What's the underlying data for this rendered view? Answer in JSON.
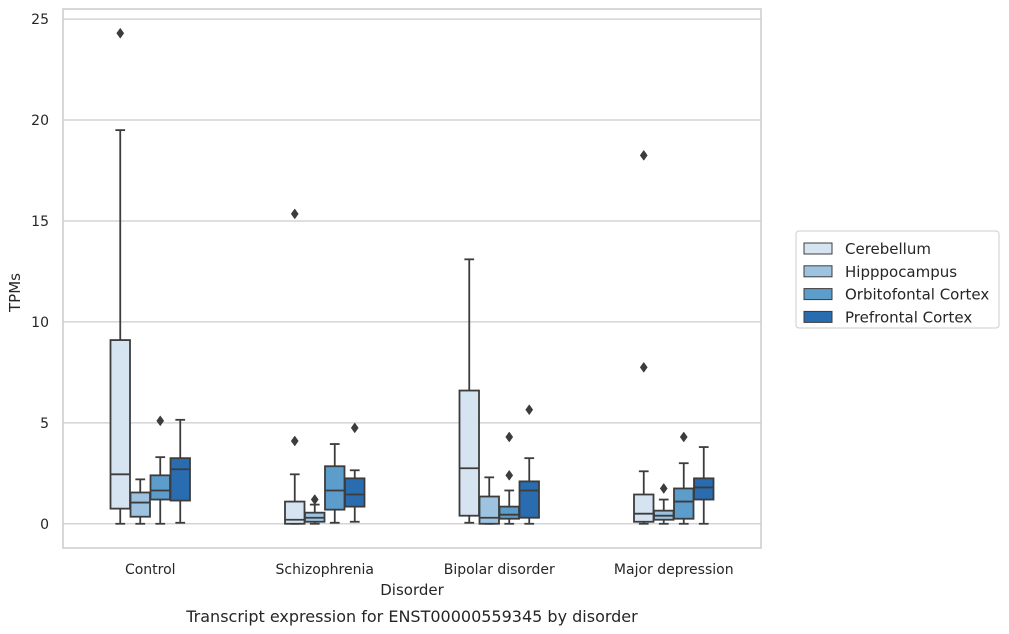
{
  "chart_data": {
    "type": "boxplot",
    "caption": "Transcript expression for ENST00000559345 by disorder",
    "xlabel": "Disorder",
    "ylabel": "TPMs",
    "ylim": [
      -1.2,
      25.5
    ],
    "yticks": [
      0,
      5,
      10,
      15,
      20,
      25
    ],
    "grid": true,
    "legend_position": "right",
    "categories": [
      "Control",
      "Schizophrenia",
      "Bipolar disorder",
      "Major depression"
    ],
    "series": [
      {
        "name": "Cerebellum",
        "color": "#d6e4f2",
        "boxes": [
          {
            "whislo": 0.0,
            "q1": 0.75,
            "med": 2.45,
            "q3": 9.1,
            "whishi": 19.5,
            "fliers": [
              24.3
            ]
          },
          {
            "whislo": 0.0,
            "q1": 0.0,
            "med": 0.2,
            "q3": 1.1,
            "whishi": 2.45,
            "fliers": [
              4.1,
              15.35
            ]
          },
          {
            "whislo": 0.05,
            "q1": 0.4,
            "med": 2.75,
            "q3": 6.6,
            "whishi": 13.1,
            "fliers": []
          },
          {
            "whislo": 0.0,
            "q1": 0.1,
            "med": 0.5,
            "q3": 1.45,
            "whishi": 2.6,
            "fliers": [
              7.75,
              18.25
            ]
          }
        ]
      },
      {
        "name": "Hipppocampus",
        "color": "#9dc3e0",
        "boxes": [
          {
            "whislo": 0.0,
            "q1": 0.35,
            "med": 1.05,
            "q3": 1.55,
            "whishi": 2.2,
            "fliers": []
          },
          {
            "whislo": 0.0,
            "q1": 0.1,
            "med": 0.3,
            "q3": 0.55,
            "whishi": 0.95,
            "fliers": [
              1.2
            ]
          },
          {
            "whislo": 0.0,
            "q1": 0.0,
            "med": 0.3,
            "q3": 1.35,
            "whishi": 2.3,
            "fliers": []
          },
          {
            "whislo": 0.0,
            "q1": 0.2,
            "med": 0.4,
            "q3": 0.65,
            "whishi": 1.2,
            "fliers": [
              1.75
            ]
          }
        ]
      },
      {
        "name": "Orbitofontal Cortex",
        "color": "#5d9dcb",
        "boxes": [
          {
            "whislo": 0.0,
            "q1": 1.2,
            "med": 1.65,
            "q3": 2.4,
            "whishi": 3.3,
            "fliers": [
              5.1
            ]
          },
          {
            "whislo": 0.05,
            "q1": 0.7,
            "med": 1.65,
            "q3": 2.85,
            "whishi": 3.95,
            "fliers": []
          },
          {
            "whislo": 0.0,
            "q1": 0.25,
            "med": 0.45,
            "q3": 0.85,
            "whishi": 1.65,
            "fliers": [
              2.4,
              4.3
            ]
          },
          {
            "whislo": 0.0,
            "q1": 0.25,
            "med": 1.1,
            "q3": 1.75,
            "whishi": 3.0,
            "fliers": [
              4.3
            ]
          }
        ]
      },
      {
        "name": "Prefrontal Cortex",
        "color": "#2a6cb0",
        "boxes": [
          {
            "whislo": 0.05,
            "q1": 1.15,
            "med": 2.7,
            "q3": 3.25,
            "whishi": 5.15,
            "fliers": []
          },
          {
            "whislo": 0.1,
            "q1": 0.85,
            "med": 1.45,
            "q3": 2.25,
            "whishi": 2.65,
            "fliers": [
              4.75
            ]
          },
          {
            "whislo": 0.0,
            "q1": 0.3,
            "med": 1.65,
            "q3": 2.1,
            "whishi": 3.25,
            "fliers": [
              5.65
            ]
          },
          {
            "whislo": 0.0,
            "q1": 1.2,
            "med": 1.8,
            "q3": 2.25,
            "whishi": 3.8,
            "fliers": []
          }
        ]
      }
    ]
  }
}
